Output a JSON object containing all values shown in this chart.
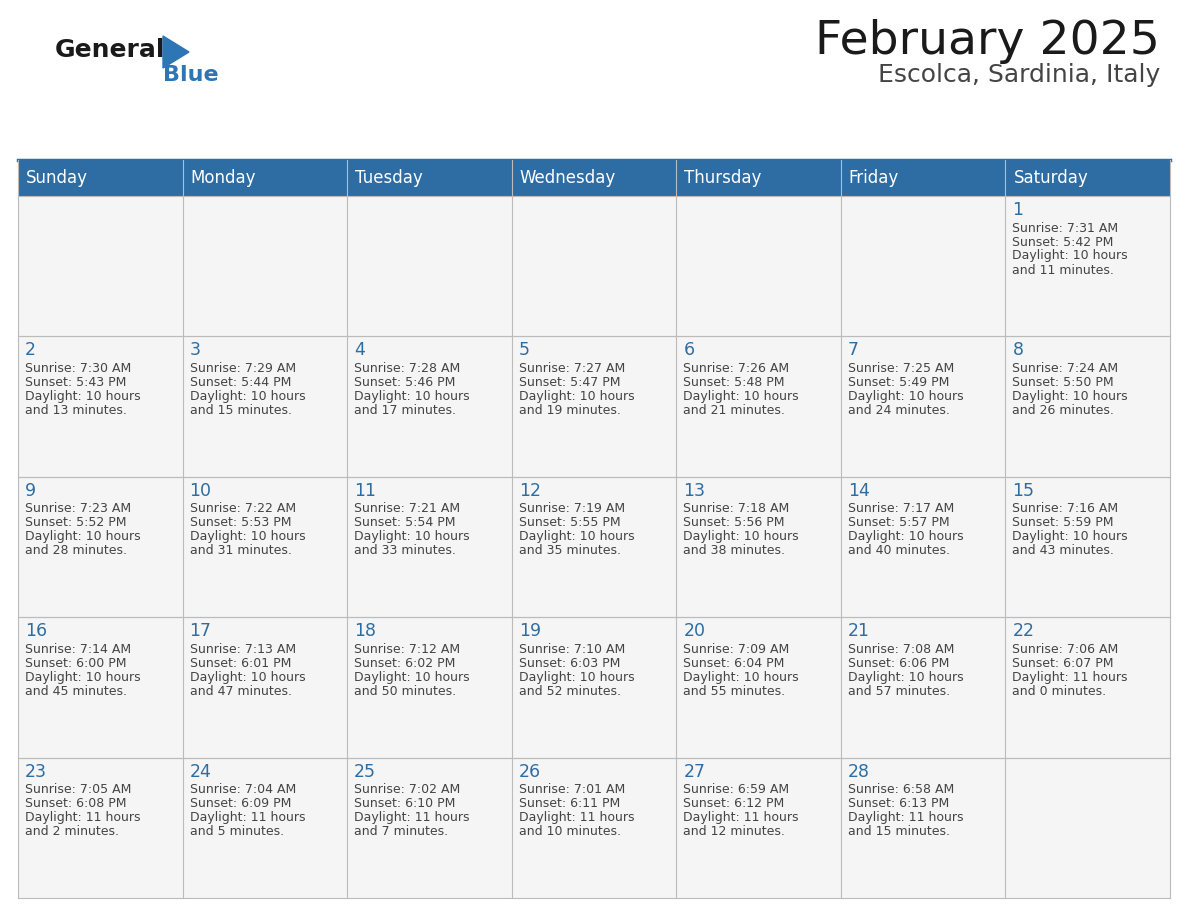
{
  "title": "February 2025",
  "subtitle": "Escolca, Sardinia, Italy",
  "header_color": "#2E6DA4",
  "header_text_color": "#FFFFFF",
  "day_headers": [
    "Sunday",
    "Monday",
    "Tuesday",
    "Wednesday",
    "Thursday",
    "Friday",
    "Saturday"
  ],
  "title_color": "#1a1a1a",
  "subtitle_color": "#444444",
  "day_num_color": "#2E6DA4",
  "cell_text_color": "#444444",
  "cell_bg_color": "#F5F5F5",
  "logo_general_color": "#1a1a1a",
  "logo_blue_color": "#2E75B6",
  "grid_line_color": "#BBBBBB",
  "calendar_data": [
    [
      null,
      null,
      null,
      null,
      null,
      null,
      {
        "day": "1",
        "sunrise": "7:31 AM",
        "sunset": "5:42 PM",
        "daylight": "10 hours\nand 11 minutes."
      }
    ],
    [
      {
        "day": "2",
        "sunrise": "7:30 AM",
        "sunset": "5:43 PM",
        "daylight": "10 hours\nand 13 minutes."
      },
      {
        "day": "3",
        "sunrise": "7:29 AM",
        "sunset": "5:44 PM",
        "daylight": "10 hours\nand 15 minutes."
      },
      {
        "day": "4",
        "sunrise": "7:28 AM",
        "sunset": "5:46 PM",
        "daylight": "10 hours\nand 17 minutes."
      },
      {
        "day": "5",
        "sunrise": "7:27 AM",
        "sunset": "5:47 PM",
        "daylight": "10 hours\nand 19 minutes."
      },
      {
        "day": "6",
        "sunrise": "7:26 AM",
        "sunset": "5:48 PM",
        "daylight": "10 hours\nand 21 minutes."
      },
      {
        "day": "7",
        "sunrise": "7:25 AM",
        "sunset": "5:49 PM",
        "daylight": "10 hours\nand 24 minutes."
      },
      {
        "day": "8",
        "sunrise": "7:24 AM",
        "sunset": "5:50 PM",
        "daylight": "10 hours\nand 26 minutes."
      }
    ],
    [
      {
        "day": "9",
        "sunrise": "7:23 AM",
        "sunset": "5:52 PM",
        "daylight": "10 hours\nand 28 minutes."
      },
      {
        "day": "10",
        "sunrise": "7:22 AM",
        "sunset": "5:53 PM",
        "daylight": "10 hours\nand 31 minutes."
      },
      {
        "day": "11",
        "sunrise": "7:21 AM",
        "sunset": "5:54 PM",
        "daylight": "10 hours\nand 33 minutes."
      },
      {
        "day": "12",
        "sunrise": "7:19 AM",
        "sunset": "5:55 PM",
        "daylight": "10 hours\nand 35 minutes."
      },
      {
        "day": "13",
        "sunrise": "7:18 AM",
        "sunset": "5:56 PM",
        "daylight": "10 hours\nand 38 minutes."
      },
      {
        "day": "14",
        "sunrise": "7:17 AM",
        "sunset": "5:57 PM",
        "daylight": "10 hours\nand 40 minutes."
      },
      {
        "day": "15",
        "sunrise": "7:16 AM",
        "sunset": "5:59 PM",
        "daylight": "10 hours\nand 43 minutes."
      }
    ],
    [
      {
        "day": "16",
        "sunrise": "7:14 AM",
        "sunset": "6:00 PM",
        "daylight": "10 hours\nand 45 minutes."
      },
      {
        "day": "17",
        "sunrise": "7:13 AM",
        "sunset": "6:01 PM",
        "daylight": "10 hours\nand 47 minutes."
      },
      {
        "day": "18",
        "sunrise": "7:12 AM",
        "sunset": "6:02 PM",
        "daylight": "10 hours\nand 50 minutes."
      },
      {
        "day": "19",
        "sunrise": "7:10 AM",
        "sunset": "6:03 PM",
        "daylight": "10 hours\nand 52 minutes."
      },
      {
        "day": "20",
        "sunrise": "7:09 AM",
        "sunset": "6:04 PM",
        "daylight": "10 hours\nand 55 minutes."
      },
      {
        "day": "21",
        "sunrise": "7:08 AM",
        "sunset": "6:06 PM",
        "daylight": "10 hours\nand 57 minutes."
      },
      {
        "day": "22",
        "sunrise": "7:06 AM",
        "sunset": "6:07 PM",
        "daylight": "11 hours\nand 0 minutes."
      }
    ],
    [
      {
        "day": "23",
        "sunrise": "7:05 AM",
        "sunset": "6:08 PM",
        "daylight": "11 hours\nand 2 minutes."
      },
      {
        "day": "24",
        "sunrise": "7:04 AM",
        "sunset": "6:09 PM",
        "daylight": "11 hours\nand 5 minutes."
      },
      {
        "day": "25",
        "sunrise": "7:02 AM",
        "sunset": "6:10 PM",
        "daylight": "11 hours\nand 7 minutes."
      },
      {
        "day": "26",
        "sunrise": "7:01 AM",
        "sunset": "6:11 PM",
        "daylight": "11 hours\nand 10 minutes."
      },
      {
        "day": "27",
        "sunrise": "6:59 AM",
        "sunset": "6:12 PM",
        "daylight": "11 hours\nand 12 minutes."
      },
      {
        "day": "28",
        "sunrise": "6:58 AM",
        "sunset": "6:13 PM",
        "daylight": "11 hours\nand 15 minutes."
      },
      null
    ]
  ]
}
